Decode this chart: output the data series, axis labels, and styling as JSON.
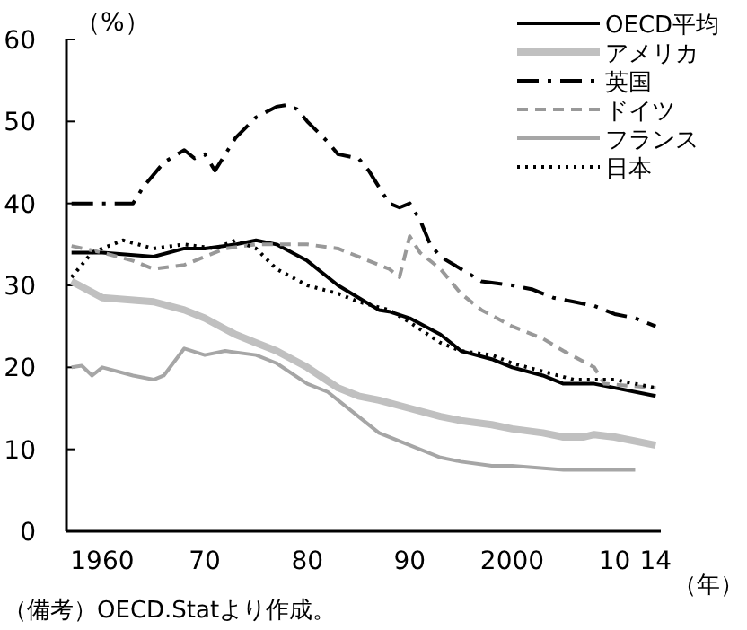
{
  "chart_data": {
    "type": "line",
    "ylabel": "（%）",
    "xlabel": "（年）",
    "annotations": [
      "（備考）OECD.Statより作成。"
    ],
    "xlim": [
      1956.5,
      2014.5
    ],
    "ylim": [
      0,
      60
    ],
    "xticks": [
      {
        "value": 1960,
        "label": "1960"
      },
      {
        "value": 1970,
        "label": "70"
      },
      {
        "value": 1980,
        "label": "80"
      },
      {
        "value": 1990,
        "label": "90"
      },
      {
        "value": 2000,
        "label": "2000"
      },
      {
        "value": 2010,
        "label": "10"
      },
      {
        "value": 2014,
        "label": "14"
      }
    ],
    "yticks": [
      0,
      10,
      20,
      30,
      40,
      50,
      60
    ],
    "grid": false,
    "legend": "top right",
    "series": [
      {
        "name": "OECD平均",
        "color": "#000000",
        "line_style": "solid",
        "x": [
          1957,
          1960,
          1965,
          1968,
          1970,
          1973,
          1975,
          1977,
          1980,
          1983,
          1985,
          1987,
          1988,
          1990,
          1993,
          1995,
          1998,
          2000,
          2003,
          2005,
          2008,
          2010,
          2014
        ],
        "values": [
          34,
          34,
          33.5,
          34.5,
          34.5,
          35,
          35.5,
          35,
          33,
          30,
          28.5,
          27,
          26.8,
          26,
          24,
          22,
          21,
          20,
          19,
          18,
          18,
          17.5,
          16.5
        ]
      },
      {
        "name": "アメリカ",
        "color": "#c0c0c0",
        "line_style": "solid",
        "x": [
          1957,
          1960,
          1965,
          1968,
          1970,
          1973,
          1975,
          1977,
          1980,
          1983,
          1985,
          1987,
          1990,
          1993,
          1995,
          1998,
          2000,
          2003,
          2005,
          2007,
          2008,
          2010,
          2012,
          2014
        ],
        "values": [
          30.5,
          28.5,
          28,
          27,
          26,
          24,
          23,
          22,
          20,
          17.5,
          16.5,
          16,
          15,
          14,
          13.5,
          13,
          12.5,
          12,
          11.5,
          11.5,
          11.8,
          11.5,
          11,
          10.5
        ]
      },
      {
        "name": "英国",
        "color": "#000000",
        "line_style": "dashdot",
        "x": [
          1957,
          1963,
          1964,
          1966,
          1968,
          1969,
          1970,
          1971,
          1973,
          1975,
          1977,
          1978,
          1979,
          1980,
          1982,
          1983,
          1985,
          1986,
          1987,
          1988,
          1989,
          1990,
          1991,
          1992,
          1993,
          1995,
          1997,
          2000,
          2002,
          2004,
          2006,
          2008,
          2010,
          2012,
          2014
        ],
        "values": [
          40,
          40,
          42,
          45,
          46.5,
          45.5,
          46,
          44,
          48,
          50.5,
          51.8,
          52,
          51.5,
          50,
          47.5,
          46,
          45.5,
          44,
          42,
          40,
          39.5,
          40,
          38,
          35,
          33.5,
          32,
          30.5,
          30,
          29.5,
          28.5,
          28,
          27.5,
          26.5,
          26,
          25
        ]
      },
      {
        "name": "ドイツ",
        "color": "#999999",
        "line_style": "dashed",
        "x": [
          1957,
          1960,
          1963,
          1965,
          1968,
          1970,
          1972,
          1975,
          1980,
          1983,
          1986,
          1988,
          1989,
          1990,
          1991,
          1993,
          1995,
          1997,
          2000,
          2003,
          2005,
          2008,
          2009,
          2014
        ],
        "values": [
          34.8,
          34,
          33,
          32,
          32.5,
          33.5,
          34.5,
          35,
          35,
          34.5,
          33,
          32,
          31,
          36,
          34,
          32,
          29,
          27,
          25,
          23.5,
          22,
          20,
          18,
          17.5
        ]
      },
      {
        "name": "フランス",
        "color": "#a6a6a6",
        "line_style": "solid",
        "x": [
          1957,
          1958,
          1959,
          1960,
          1963,
          1965,
          1966,
          1968,
          1970,
          1972,
          1975,
          1977,
          1980,
          1982,
          1985,
          1987,
          1990,
          1993,
          1995,
          1998,
          2000,
          2005,
          2012
        ],
        "values": [
          20,
          20.2,
          19,
          20,
          19,
          18.5,
          19,
          22.3,
          21.5,
          22,
          21.5,
          20.5,
          18,
          17,
          14,
          12,
          10.5,
          9,
          8.5,
          8,
          8,
          7.5,
          7.5
        ]
      },
      {
        "name": "日本",
        "color": "#000000",
        "line_style": "dotted",
        "x": [
          1957,
          1959,
          1962,
          1965,
          1968,
          1971,
          1973,
          1975,
          1977,
          1980,
          1983,
          1985,
          1988,
          1990,
          1993,
          1995,
          1998,
          2000,
          2003,
          2006,
          2010,
          2012,
          2014
        ],
        "values": [
          31,
          34,
          35.5,
          34.5,
          35,
          34.5,
          35.5,
          34.5,
          32,
          30,
          29,
          28,
          27,
          25.5,
          23,
          22,
          21.5,
          20.5,
          19.5,
          18.5,
          18.5,
          18,
          17.5
        ]
      }
    ]
  }
}
